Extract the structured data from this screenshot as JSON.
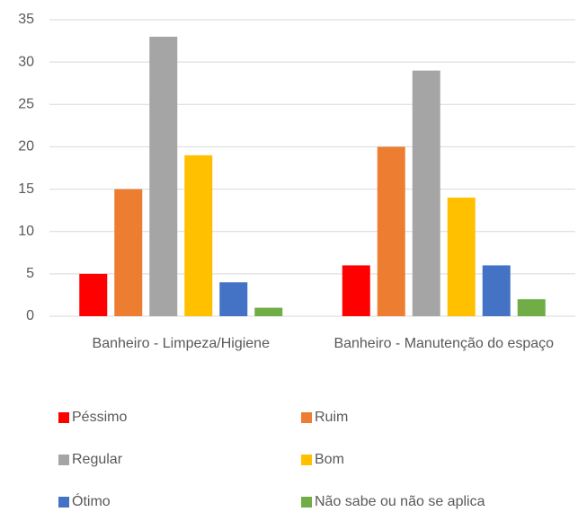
{
  "chart_data": {
    "type": "bar",
    "categories": [
      "Banheiro - Limpeza/Higiene",
      "Banheiro - Manutenção do espaço"
    ],
    "series": [
      {
        "name": "Péssimo",
        "color": "#ff0000",
        "values": [
          5,
          6
        ]
      },
      {
        "name": "Ruim",
        "color": "#ed7d31",
        "values": [
          15,
          20
        ]
      },
      {
        "name": "Regular",
        "color": "#a5a5a5",
        "values": [
          33,
          29
        ]
      },
      {
        "name": "Bom",
        "color": "#ffc000",
        "values": [
          19,
          14
        ]
      },
      {
        "name": "Ótimo",
        "color": "#4472c4",
        "values": [
          4,
          6
        ]
      },
      {
        "name": "Não sabe ou não se aplica",
        "color": "#70ad47",
        "values": [
          1,
          2
        ]
      }
    ],
    "ylim": [
      0,
      35
    ],
    "yticks": [
      0,
      5,
      10,
      15,
      20,
      25,
      30,
      35
    ],
    "grid": true
  }
}
